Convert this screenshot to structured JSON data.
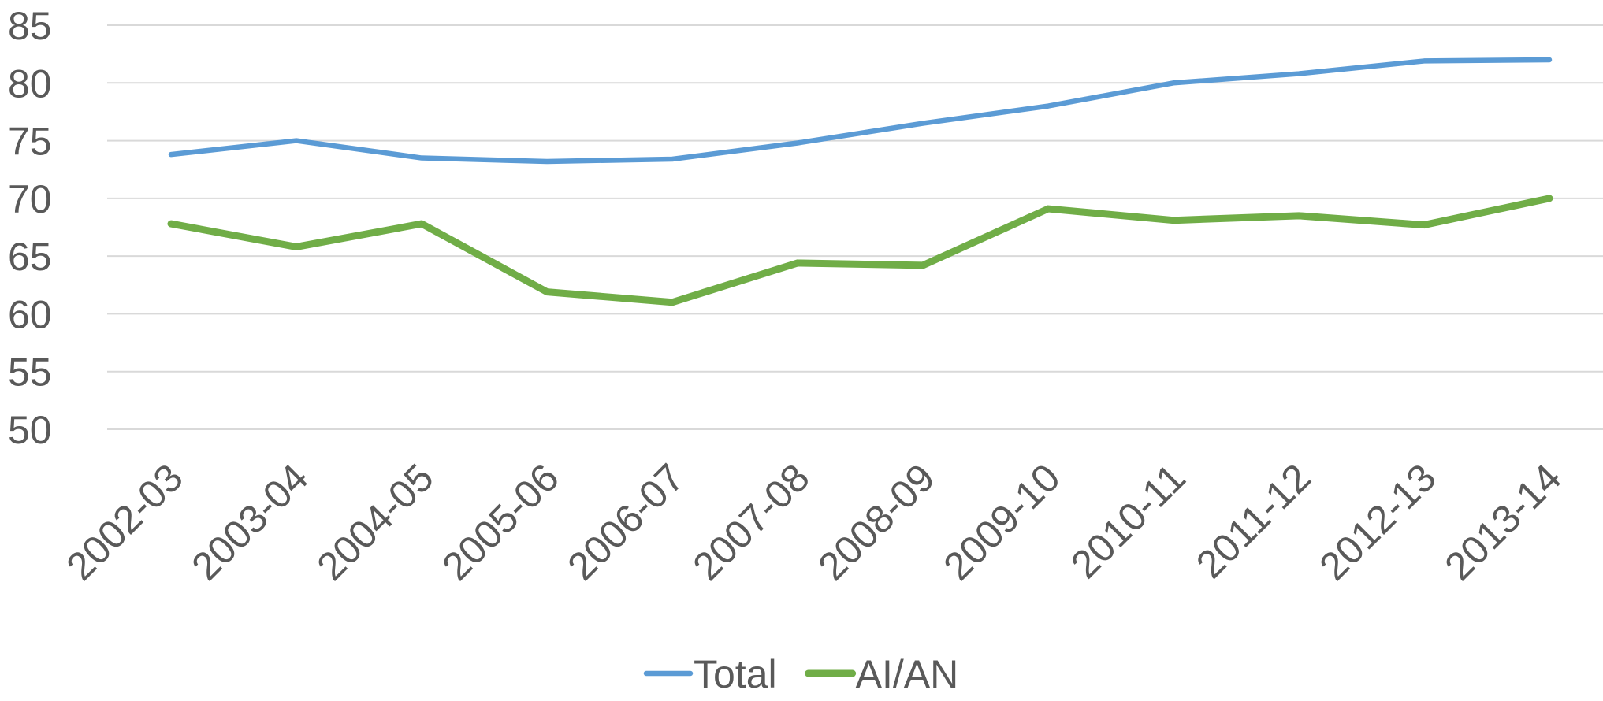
{
  "chart_data": {
    "type": "line",
    "categories": [
      "2002-03",
      "2003-04",
      "2004-05",
      "2005-06",
      "2006-07",
      "2007-08",
      "2008-09",
      "2009-10",
      "2010-11",
      "2011-12",
      "2012-13",
      "2013-14"
    ],
    "series": [
      {
        "name": "Total",
        "color": "#5b9bd5",
        "values": [
          73.8,
          75.0,
          73.5,
          73.2,
          73.4,
          74.8,
          76.5,
          78.0,
          80.0,
          80.8,
          81.9,
          82.0
        ]
      },
      {
        "name": "AI/AN",
        "color": "#70ad47",
        "values": [
          67.8,
          65.8,
          67.8,
          61.9,
          61.0,
          64.4,
          64.2,
          69.1,
          68.1,
          68.5,
          67.7,
          70.0
        ]
      }
    ],
    "ylim": [
      50,
      85
    ],
    "yticks": [
      50,
      55,
      60,
      65,
      70,
      75,
      80,
      85
    ],
    "grid": true,
    "legend": "bottom"
  }
}
